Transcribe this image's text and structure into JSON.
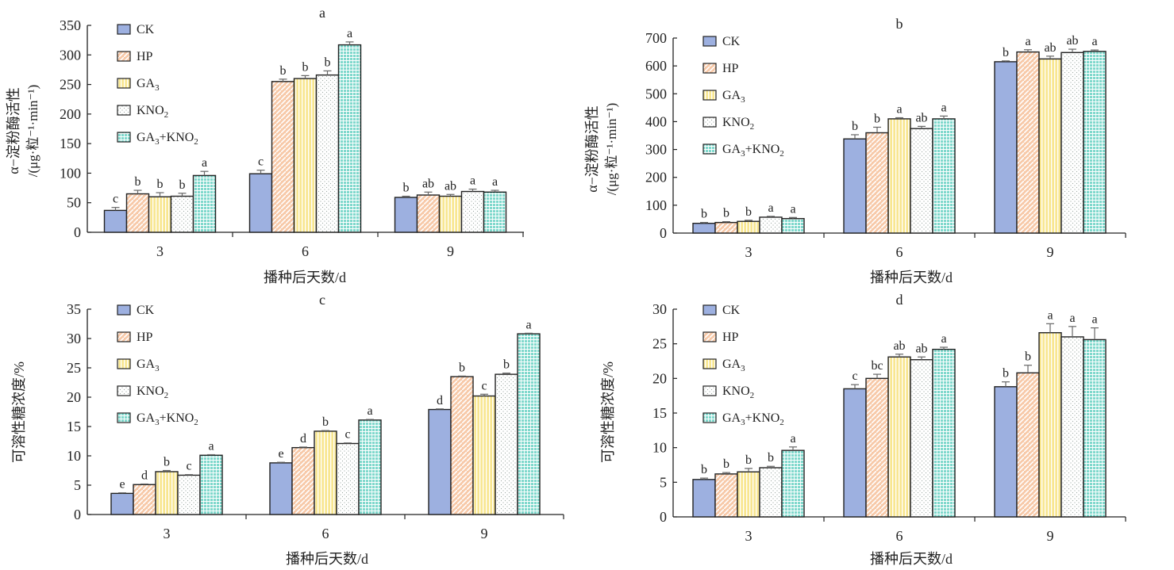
{
  "legend": {
    "entries": [
      "CK",
      "HP",
      "GA3",
      "KNO2",
      "GA3+KNO2"
    ],
    "placement": "top-left"
  },
  "colors": {
    "CK": "#9db0e0",
    "HP": "#f7c9a8",
    "GA3": "#f8e690",
    "KNO2": "#ffffff",
    "GA3+KNO2": "#7fd8cc"
  },
  "chart_data": [
    {
      "type": "bar",
      "panel": "a",
      "title": "a",
      "xlabel": "播种后天数/d",
      "ylabel": "α−淀粉酶活性",
      "ylabel_unit": "/(μg·粒⁻¹·min⁻¹)",
      "categories": [
        "3",
        "6",
        "9"
      ],
      "ylim": [
        0,
        350
      ],
      "yticks": [
        0,
        50,
        100,
        150,
        200,
        250,
        300,
        350
      ],
      "grid": false,
      "series": [
        {
          "name": "CK",
          "values": [
            37,
            99,
            59
          ],
          "errors": [
            5,
            6,
            2
          ],
          "labels": [
            "c",
            "c",
            "b"
          ]
        },
        {
          "name": "HP",
          "values": [
            65,
            255,
            63
          ],
          "errors": [
            6,
            4,
            5
          ],
          "labels": [
            "b",
            "b",
            "ab"
          ]
        },
        {
          "name": "GA3",
          "values": [
            60,
            260,
            61
          ],
          "errors": [
            7,
            5,
            3
          ],
          "labels": [
            "b",
            "b",
            "ab"
          ]
        },
        {
          "name": "KNO2",
          "values": [
            61,
            266,
            69
          ],
          "errors": [
            5,
            7,
            4
          ],
          "labels": [
            "b",
            "b",
            "a"
          ]
        },
        {
          "name": "GA3+KNO2",
          "values": [
            96,
            317,
            68
          ],
          "errors": [
            7,
            5,
            3
          ],
          "labels": [
            "a",
            "a",
            "a"
          ]
        }
      ]
    },
    {
      "type": "bar",
      "panel": "b",
      "title": "b",
      "xlabel": "播种后天数/d",
      "ylabel": "α−淀粉酶活性",
      "ylabel_unit": "/(μg·粒⁻¹·min⁻¹)",
      "categories": [
        "3",
        "6",
        "9"
      ],
      "ylim": [
        0,
        700
      ],
      "yticks": [
        0,
        100,
        200,
        300,
        400,
        500,
        600,
        700
      ],
      "grid": false,
      "series": [
        {
          "name": "CK",
          "values": [
            35,
            338,
            615
          ],
          "errors": [
            3,
            15,
            3
          ],
          "labels": [
            "b",
            "b",
            "b"
          ]
        },
        {
          "name": "HP",
          "values": [
            38,
            360,
            650
          ],
          "errors": [
            3,
            20,
            8
          ],
          "labels": [
            "b",
            "b",
            "a"
          ]
        },
        {
          "name": "GA3",
          "values": [
            42,
            410,
            625
          ],
          "errors": [
            4,
            4,
            10
          ],
          "labels": [
            "b",
            "a",
            "ab"
          ]
        },
        {
          "name": "KNO2",
          "values": [
            57,
            375,
            648
          ],
          "errors": [
            3,
            8,
            12
          ],
          "labels": [
            "a",
            "ab",
            "ab"
          ]
        },
        {
          "name": "GA3+KNO2",
          "values": [
            52,
            410,
            652
          ],
          "errors": [
            4,
            10,
            5
          ],
          "labels": [
            "a",
            "a",
            "a"
          ]
        }
      ]
    },
    {
      "type": "bar",
      "panel": "c",
      "title": "c",
      "xlabel": "播种后天数/d",
      "ylabel": "可溶性糖浓度/%",
      "categories": [
        "3",
        "6",
        "9"
      ],
      "ylim": [
        0,
        35
      ],
      "yticks": [
        0,
        5,
        10,
        15,
        20,
        25,
        30,
        35
      ],
      "grid": false,
      "series": [
        {
          "name": "CK",
          "values": [
            3.6,
            8.8,
            17.9
          ],
          "errors": [
            0.1,
            0.1,
            0.1
          ],
          "labels": [
            "e",
            "e",
            "d"
          ]
        },
        {
          "name": "HP",
          "values": [
            5.1,
            11.4,
            23.5
          ],
          "errors": [
            0.1,
            0.1,
            0.1
          ],
          "labels": [
            "d",
            "d",
            "b"
          ]
        },
        {
          "name": "GA3",
          "values": [
            7.3,
            14.2,
            20.2
          ],
          "errors": [
            0.2,
            0.1,
            0.3
          ],
          "labels": [
            "b",
            "b",
            "c"
          ]
        },
        {
          "name": "KNO2",
          "values": [
            6.7,
            12.1,
            23.9
          ],
          "errors": [
            0.1,
            0.1,
            0.2
          ],
          "labels": [
            "c",
            "c",
            "b"
          ]
        },
        {
          "name": "GA3+KNO2",
          "values": [
            10.1,
            16.1,
            30.8
          ],
          "errors": [
            0.1,
            0.1,
            0.1
          ],
          "labels": [
            "a",
            "a",
            "a"
          ]
        }
      ]
    },
    {
      "type": "bar",
      "panel": "d",
      "title": "d",
      "xlabel": "播种后天数/d",
      "ylabel": "可溶性糖浓度/%",
      "categories": [
        "3",
        "6",
        "9"
      ],
      "ylim": [
        0,
        30
      ],
      "yticks": [
        0,
        5,
        10,
        15,
        20,
        25,
        30
      ],
      "grid": false,
      "series": [
        {
          "name": "CK",
          "values": [
            5.4,
            18.5,
            18.8
          ],
          "errors": [
            0.2,
            0.6,
            0.7
          ],
          "labels": [
            "b",
            "c",
            "b"
          ]
        },
        {
          "name": "HP",
          "values": [
            6.2,
            20.0,
            20.8
          ],
          "errors": [
            0.2,
            0.6,
            1.1
          ],
          "labels": [
            "b",
            "bc",
            "b"
          ]
        },
        {
          "name": "GA3",
          "values": [
            6.5,
            23.1,
            26.6
          ],
          "errors": [
            0.5,
            0.4,
            1.3
          ],
          "labels": [
            "b",
            "ab",
            "a"
          ]
        },
        {
          "name": "KNO2",
          "values": [
            7.1,
            22.7,
            26.0
          ],
          "errors": [
            0.2,
            0.4,
            1.5
          ],
          "labels": [
            "b",
            "ab",
            "a"
          ]
        },
        {
          "name": "GA3+KNO2",
          "values": [
            9.6,
            24.2,
            25.6
          ],
          "errors": [
            0.5,
            0.3,
            1.7
          ],
          "labels": [
            "a",
            "a",
            "a"
          ]
        }
      ]
    }
  ]
}
